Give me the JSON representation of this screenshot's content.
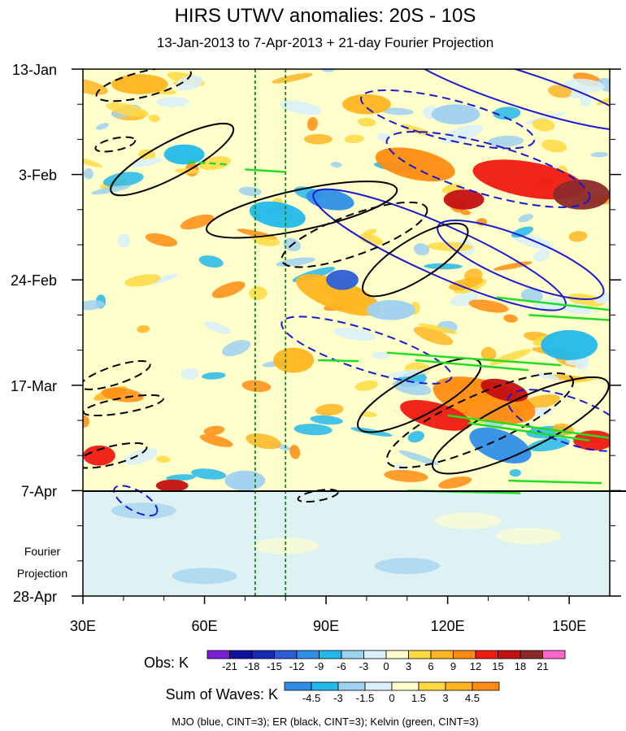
{
  "chart_data": {
    "type": "heatmap",
    "title": "HIRS UTWV anomalies: 20S - 10S",
    "subtitle": "13-Jan-2013 to 7-Apr-2013 + 21-day Fourier Projection",
    "x_axis": {
      "range_deg_east": [
        30,
        160
      ],
      "ticks": [
        {
          "value": 30,
          "label": "30E"
        },
        {
          "value": 60,
          "label": "60E"
        },
        {
          "value": 90,
          "label": "90E"
        },
        {
          "value": 120,
          "label": "120E"
        },
        {
          "value": 150,
          "label": "150E"
        }
      ]
    },
    "y_axis": {
      "direction": "time increases downward",
      "range_days_from_13_Jan": [
        0,
        105
      ],
      "ticks": [
        {
          "day": 0,
          "label": "13-Jan"
        },
        {
          "day": 21,
          "label": "3-Feb"
        },
        {
          "day": 42,
          "label": "24-Feb"
        },
        {
          "day": 63,
          "label": "17-Mar"
        },
        {
          "day": 84,
          "label": "7-Apr"
        },
        {
          "day": 105,
          "label": "28-Apr"
        }
      ]
    },
    "projection_label": [
      "Fourier",
      "Projection"
    ],
    "projection_start_day": 84,
    "reference_longitudes_dashed_green": [
      72.5,
      80
    ],
    "obs_colorbar": {
      "title": "Obs: K",
      "levels": [
        "-21",
        "-18",
        "-15",
        "-12",
        "-9",
        "-6",
        "-3",
        "0",
        "3",
        "6",
        "9",
        "12",
        "15",
        "18",
        "21"
      ],
      "colors": [
        "#7a1fd6",
        "#1010a0",
        "#1a2ab8",
        "#2e5ed6",
        "#2f8fe8",
        "#23b8ea",
        "#9fd1f0",
        "#d8f0fa",
        "#ffffcc",
        "#ffd940",
        "#ffb520",
        "#ff8c10",
        "#ef1a10",
        "#c41010",
        "#8c2a2a",
        "#ff66cc"
      ]
    },
    "waves_colorbar": {
      "title": "Sum of Waves: K",
      "levels": [
        "-4.5",
        "-3",
        "-1.5",
        "0",
        "1.5",
        "3",
        "4.5"
      ],
      "colors": [
        "#2f8fe8",
        "#23b8ea",
        "#9fd1f0",
        "#d8f0fa",
        "#ffffcc",
        "#ffd940",
        "#ffb520",
        "#ff8c10"
      ]
    },
    "legend_note": "MJO (blue, CINT=3); ER (black, CINT=3); Kelvin (green, CINT=3)",
    "contour_colors": {
      "MJO": "#1a1ad0",
      "ER": "#000000",
      "Kelvin": "#22dd22"
    },
    "anomaly_blobs": [
      {
        "lon": 112,
        "day": 19,
        "rx": 10,
        "ry": 3,
        "rot": 12,
        "level": 9
      },
      {
        "lon": 140,
        "day": 22,
        "rx": 14,
        "ry": 3.5,
        "rot": 10,
        "level": 12
      },
      {
        "lon": 153,
        "day": 25,
        "rx": 7,
        "ry": 3,
        "rot": 0,
        "level": 18
      },
      {
        "lon": 124,
        "day": 26,
        "rx": 5,
        "ry": 2,
        "rot": 0,
        "level": 15
      },
      {
        "lon": 129,
        "day": 66,
        "rx": 13,
        "ry": 4,
        "rot": 15,
        "level": 9
      },
      {
        "lon": 134,
        "day": 64,
        "rx": 6,
        "ry": 2,
        "rot": 15,
        "level": 15
      },
      {
        "lon": 117,
        "day": 69,
        "rx": 9,
        "ry": 2.5,
        "rot": 15,
        "level": 12
      },
      {
        "lon": 93,
        "day": 45,
        "rx": 11,
        "ry": 3,
        "rot": 20,
        "level": 6
      },
      {
        "lon": 82,
        "day": 58,
        "rx": 5,
        "ry": 2.5,
        "rot": 0,
        "level": 6
      },
      {
        "lon": 52,
        "day": 83,
        "rx": 4,
        "ry": 1.2,
        "rot": 0,
        "level": 15
      },
      {
        "lon": 34,
        "day": 77,
        "rx": 4,
        "ry": 2,
        "rot": 0,
        "level": 12
      },
      {
        "lon": 156,
        "day": 74,
        "rx": 5,
        "ry": 2,
        "rot": 0,
        "level": 12
      },
      {
        "lon": 44,
        "day": 3,
        "rx": 7,
        "ry": 2,
        "rot": 0,
        "level": 6
      },
      {
        "lon": 100,
        "day": 7,
        "rx": 6,
        "ry": 2,
        "rot": 0,
        "level": 6
      },
      {
        "lon": 78,
        "day": 29,
        "rx": 7,
        "ry": 2.5,
        "rot": 10,
        "level": -9
      },
      {
        "lon": 91,
        "day": 26,
        "rx": 6,
        "ry": 2,
        "rot": 10,
        "level": -12
      },
      {
        "lon": 94,
        "day": 42,
        "rx": 4,
        "ry": 2,
        "rot": 0,
        "level": -15
      },
      {
        "lon": 55,
        "day": 17,
        "rx": 5,
        "ry": 2,
        "rot": 0,
        "level": -9
      },
      {
        "lon": 133,
        "day": 75,
        "rx": 8,
        "ry": 3,
        "rot": 20,
        "level": -12
      },
      {
        "lon": 150,
        "day": 55,
        "rx": 7,
        "ry": 3,
        "rot": 0,
        "level": -9
      },
      {
        "lon": 70,
        "day": 82,
        "rx": 5,
        "ry": 2,
        "rot": 0,
        "level": -6
      },
      {
        "lon": 122,
        "day": 9,
        "rx": 6,
        "ry": 2,
        "rot": 0,
        "level": -6
      },
      {
        "lon": 106,
        "day": 48,
        "rx": 6,
        "ry": 2,
        "rot": 0,
        "level": -6
      }
    ],
    "mjo_contours": [
      {
        "lon": 138,
        "day": 4,
        "rx": 30,
        "ry": 3.5,
        "rot": 18,
        "dashed": false
      },
      {
        "lon": 120,
        "day": 10,
        "rx": 22,
        "ry": 4,
        "rot": 14,
        "dashed": true
      },
      {
        "lon": 130,
        "day": 20,
        "rx": 26,
        "ry": 5,
        "rot": 16,
        "dashed": true
      },
      {
        "lon": 118,
        "day": 36,
        "rx": 34,
        "ry": 5,
        "rot": 24,
        "dashed": false
      },
      {
        "lon": 138,
        "day": 38,
        "rx": 22,
        "ry": 4.5,
        "rot": 22,
        "dashed": false
      },
      {
        "lon": 100,
        "day": 56,
        "rx": 22,
        "ry": 4,
        "rot": 18,
        "dashed": true
      },
      {
        "lon": 150,
        "day": 70,
        "rx": 16,
        "ry": 4.5,
        "rot": 20,
        "dashed": true
      },
      {
        "lon": 43,
        "day": 86,
        "rx": 6,
        "ry": 2,
        "rot": 30,
        "dashed": true
      }
    ],
    "er_contours": [
      {
        "lon": 52,
        "day": 18,
        "rx": 17,
        "ry": 3.5,
        "rot": -28,
        "dashed": false
      },
      {
        "lon": 84,
        "day": 28,
        "rx": 24,
        "ry": 4,
        "rot": -12,
        "dashed": false
      },
      {
        "lon": 112,
        "day": 38,
        "rx": 15,
        "ry": 4,
        "rot": -32,
        "dashed": false
      },
      {
        "lon": 97,
        "day": 33,
        "rx": 19,
        "ry": 4,
        "rot": -20,
        "dashed": true
      },
      {
        "lon": 113,
        "day": 65,
        "rx": 17,
        "ry": 4,
        "rot": -28,
        "dashed": false
      },
      {
        "lon": 128,
        "day": 70,
        "rx": 25,
        "ry": 5,
        "rot": -24,
        "dashed": true
      },
      {
        "lon": 138,
        "day": 71,
        "rx": 24,
        "ry": 5,
        "rot": -26,
        "dashed": false
      },
      {
        "lon": 45,
        "day": 3,
        "rx": 12,
        "ry": 2.5,
        "rot": -14,
        "dashed": true
      },
      {
        "lon": 38,
        "day": 61,
        "rx": 9,
        "ry": 1.8,
        "rot": -18,
        "dashed": true
      },
      {
        "lon": 37,
        "day": 77,
        "rx": 9,
        "ry": 1.8,
        "rot": -14,
        "dashed": true
      },
      {
        "lon": 38,
        "day": 15,
        "rx": 5,
        "ry": 1.2,
        "rot": -12,
        "dashed": true
      },
      {
        "lon": 40,
        "day": 67,
        "rx": 10,
        "ry": 1.5,
        "rot": -10,
        "dashed": true
      },
      {
        "lon": 88,
        "day": 85,
        "rx": 5,
        "ry": 1,
        "rot": -10,
        "dashed": true
      }
    ],
    "kelvin_segments": [
      {
        "lon1": 56,
        "day1": 18.5,
        "lon2": 66,
        "day2": 19,
        "dashed": true
      },
      {
        "lon1": 70,
        "day1": 20,
        "lon2": 80,
        "day2": 20.5,
        "dashed": false
      },
      {
        "lon1": 132,
        "day1": 45.5,
        "lon2": 160,
        "day2": 48,
        "dashed": false
      },
      {
        "lon1": 140,
        "day1": 49,
        "lon2": 160,
        "day2": 50,
        "dashed": false
      },
      {
        "lon1": 105,
        "day1": 56.5,
        "lon2": 148,
        "day2": 59,
        "dashed": false
      },
      {
        "lon1": 112,
        "day1": 58,
        "lon2": 140,
        "day2": 60,
        "dashed": false
      },
      {
        "lon1": 120,
        "day1": 69,
        "lon2": 160,
        "day2": 73.5,
        "dashed": false
      },
      {
        "lon1": 125,
        "day1": 70.5,
        "lon2": 155,
        "day2": 74,
        "dashed": false
      },
      {
        "lon1": 135,
        "day1": 82,
        "lon2": 158,
        "day2": 82.5,
        "dashed": false
      },
      {
        "lon1": 110,
        "day1": 84,
        "lon2": 138,
        "day2": 84.5,
        "dashed": false
      },
      {
        "lon1": 88,
        "day1": 58,
        "lon2": 98,
        "day2": 58.2,
        "dashed": false
      }
    ]
  }
}
